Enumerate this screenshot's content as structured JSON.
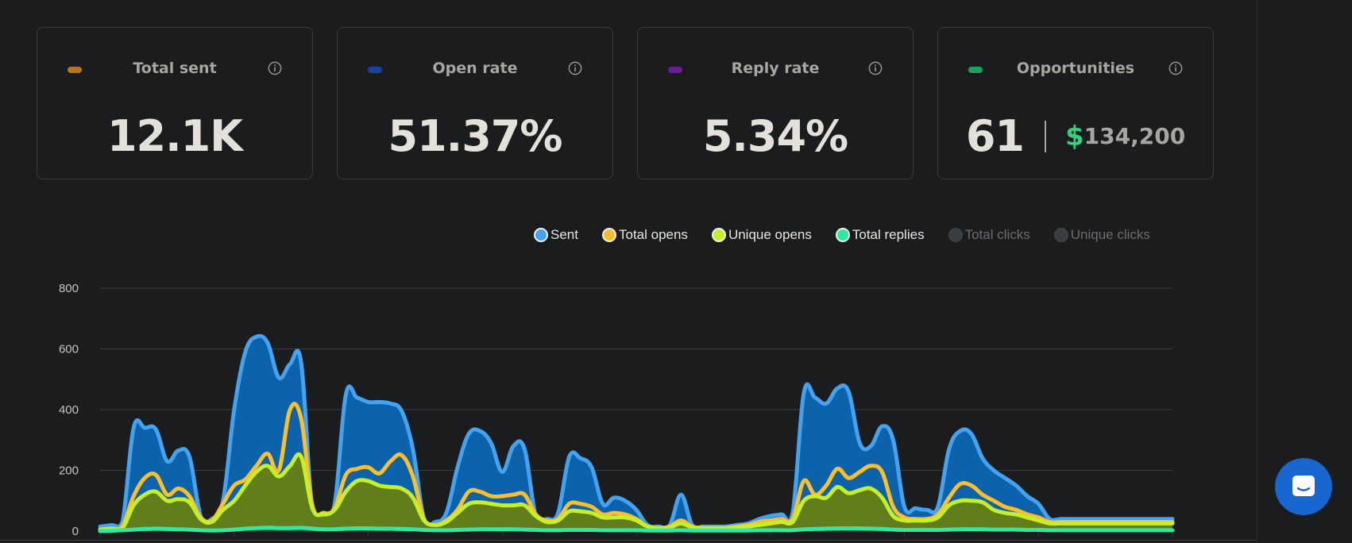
{
  "stats": [
    {
      "title": "Total sent",
      "value": "12.1K",
      "color": "#b8741a",
      "icon": "info-icon"
    },
    {
      "title": "Open rate",
      "value": "51.37%",
      "color": "#1c3fa8",
      "icon": "info-icon"
    },
    {
      "title": "Reply rate",
      "value": "5.34%",
      "color": "#6a1d9a",
      "icon": "info-icon"
    },
    {
      "title": "Opportunities",
      "value": "61",
      "currency_symbol": "$",
      "amount": "134,200",
      "color": "#1fa058",
      "icon": "info-icon"
    }
  ],
  "legend": [
    {
      "label": "Sent",
      "color": "#43a3f0",
      "active": true
    },
    {
      "label": "Total opens",
      "color": "#fcbf2b",
      "active": true
    },
    {
      "label": "Unique opens",
      "color": "#c4f02a",
      "active": true
    },
    {
      "label": "Total replies",
      "color": "#30e8a0",
      "active": true
    },
    {
      "label": "Total clicks",
      "color": "#3a3e40",
      "active": false
    },
    {
      "label": "Unique clicks",
      "color": "#3a3e40",
      "active": false
    }
  ],
  "chat": {
    "icon": "chat-icon"
  },
  "chart_data": {
    "type": "area",
    "title": "",
    "xlabel": "",
    "ylabel": "",
    "ylim": [
      0,
      800
    ],
    "yticks": [
      0,
      200,
      400,
      600,
      800
    ],
    "grid": true,
    "legend_position": "top-right",
    "x": [
      0,
      1,
      2,
      3,
      4,
      5,
      6,
      7,
      8,
      9,
      10,
      11,
      12,
      13,
      14,
      15,
      16,
      17,
      18,
      19,
      20,
      21,
      22,
      23,
      24,
      25,
      26,
      27,
      28,
      29,
      30,
      31,
      32,
      33,
      34,
      35,
      36,
      37,
      38,
      39,
      40,
      41,
      42,
      43,
      44,
      45,
      46,
      47,
      48,
      49,
      50,
      51,
      52,
      53,
      54,
      55,
      56,
      57,
      58,
      59,
      60,
      61,
      62,
      63,
      64,
      65,
      66,
      67,
      68,
      69,
      70,
      71,
      72,
      73,
      74,
      75,
      76,
      77,
      78,
      79,
      80,
      81,
      82,
      83,
      84,
      85,
      86,
      87,
      88,
      89,
      90,
      91,
      92,
      93,
      94,
      95,
      96
    ],
    "series": [
      {
        "name": "Sent",
        "color": "#43a3f0",
        "fill": "#0d63ab",
        "values": [
          15,
          20,
          30,
          340,
          340,
          335,
          230,
          265,
          245,
          50,
          40,
          100,
          400,
          590,
          640,
          620,
          505,
          550,
          555,
          70,
          60,
          90,
          450,
          440,
          425,
          425,
          420,
          395,
          270,
          40,
          30,
          60,
          210,
          320,
          330,
          290,
          195,
          280,
          270,
          50,
          40,
          60,
          245,
          240,
          210,
          90,
          110,
          100,
          70,
          20,
          15,
          20,
          120,
          20,
          15,
          15,
          15,
          20,
          25,
          40,
          50,
          55,
          60,
          455,
          440,
          420,
          470,
          460,
          290,
          280,
          345,
          300,
          80,
          75,
          70,
          80,
          270,
          330,
          320,
          240,
          200,
          175,
          150,
          115,
          90,
          40,
          40,
          40,
          40,
          40,
          40,
          40,
          40,
          40,
          40,
          40,
          40
        ]
      },
      {
        "name": "Total opens",
        "color": "#fcbf2b",
        "fill": "none",
        "values": [
          5,
          8,
          15,
          115,
          175,
          185,
          120,
          140,
          115,
          45,
          35,
          90,
          150,
          170,
          215,
          255,
          200,
          400,
          370,
          85,
          60,
          75,
          185,
          205,
          210,
          190,
          230,
          250,
          180,
          40,
          20,
          35,
          70,
          130,
          130,
          115,
          115,
          120,
          120,
          55,
          35,
          40,
          90,
          90,
          80,
          55,
          60,
          55,
          40,
          15,
          10,
          15,
          35,
          15,
          10,
          10,
          10,
          15,
          20,
          30,
          35,
          40,
          40,
          165,
          120,
          150,
          205,
          175,
          195,
          215,
          195,
          80,
          45,
          40,
          40,
          55,
          110,
          155,
          150,
          120,
          100,
          80,
          70,
          55,
          45,
          30,
          30,
          30,
          30,
          30,
          30,
          30,
          30,
          30,
          30,
          30,
          30
        ]
      },
      {
        "name": "Unique opens",
        "color": "#c4f02a",
        "fill": "#627e1c",
        "values": [
          5,
          8,
          10,
          85,
          120,
          130,
          100,
          105,
          95,
          40,
          30,
          70,
          100,
          150,
          195,
          215,
          180,
          215,
          245,
          75,
          55,
          70,
          130,
          165,
          165,
          150,
          145,
          140,
          110,
          35,
          20,
          30,
          60,
          90,
          95,
          90,
          85,
          85,
          85,
          50,
          30,
          35,
          65,
          65,
          60,
          45,
          45,
          45,
          35,
          15,
          10,
          12,
          25,
          12,
          10,
          10,
          10,
          12,
          15,
          20,
          25,
          30,
          30,
          100,
          115,
          110,
          145,
          125,
          135,
          140,
          110,
          50,
          35,
          35,
          35,
          45,
          85,
          100,
          100,
          95,
          70,
          60,
          55,
          45,
          35,
          25,
          25,
          25,
          25,
          25,
          25,
          25,
          25,
          25,
          25,
          25,
          25
        ]
      },
      {
        "name": "Total replies",
        "color": "#30e8a0",
        "fill": "#1b5a40",
        "values": [
          0,
          1,
          3,
          5,
          7,
          8,
          7,
          6,
          5,
          3,
          2,
          3,
          5,
          8,
          10,
          11,
          10,
          10,
          11,
          8,
          6,
          6,
          8,
          9,
          9,
          8,
          8,
          7,
          6,
          4,
          3,
          3,
          4,
          5,
          6,
          6,
          6,
          6,
          5,
          4,
          3,
          3,
          4,
          4,
          4,
          3,
          3,
          3,
          3,
          2,
          2,
          2,
          3,
          2,
          2,
          2,
          2,
          2,
          2,
          3,
          3,
          3,
          3,
          6,
          7,
          8,
          9,
          9,
          9,
          8,
          7,
          5,
          4,
          4,
          4,
          4,
          5,
          6,
          6,
          6,
          5,
          5,
          5,
          4,
          4,
          3,
          3,
          3,
          3,
          3,
          3,
          3,
          3,
          3,
          3,
          3,
          3
        ]
      }
    ]
  }
}
